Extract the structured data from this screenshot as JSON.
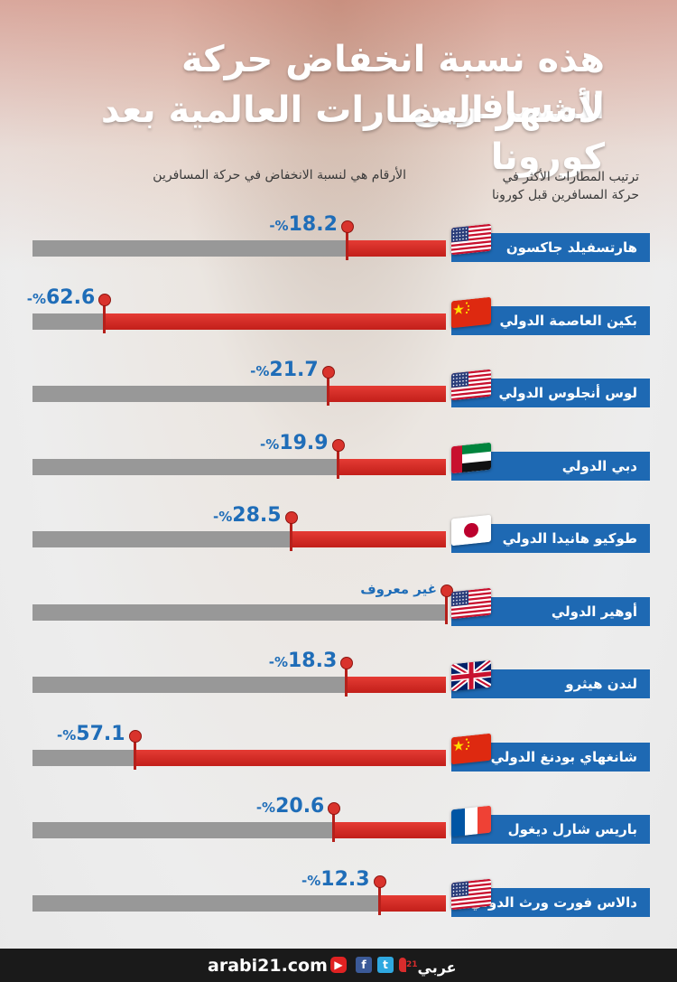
{
  "header": {
    "title_line1": "هذه نسبة انخفاض حركة المسافرين",
    "title_line2": "لأشهر المطارات العالمية بعد كورونا",
    "col_rank_line1": "ترتيب المطارات الأكثر في",
    "col_rank_line2": "حركة المسافرين قبل كورونا",
    "col_note": "الأرقام هي لنسبة الانخفاض في حركة المسافرين"
  },
  "colors": {
    "bar_red": "#d12a24",
    "track_gray": "#989898",
    "label_blue": "#1e69b3",
    "value_blue": "#1f6db8"
  },
  "chart_data": {
    "type": "bar",
    "orientation": "horizontal",
    "title": "هذه نسبة انخفاض حركة المسافرين لأشهر المطارات العالمية بعد كورونا",
    "value_unit": "%",
    "value_prefix": "-",
    "xlim": [
      0,
      100
    ],
    "categories": [
      "هارتسفيلد جاكسون",
      "بكين العاصمة الدولي",
      "لوس أنجلوس الدولي",
      "دبي الدولي",
      "طوكيو هانيدا الدولي",
      "أوهير الدولي",
      "لندن هيثرو",
      "شانغهاي بودنغ الدولي",
      "باريس شارل ديغول",
      "دالاس فورت ورث الدولي"
    ],
    "flags": [
      "usa-flag-icon",
      "china-flag-icon",
      "usa-flag-icon",
      "uae-flag-icon",
      "japan-flag-icon",
      "usa-flag-icon",
      "uk-flag-icon",
      "china-flag-icon",
      "france-flag-icon",
      "usa-flag-icon"
    ],
    "values": [
      18.2,
      62.6,
      21.7,
      19.9,
      28.5,
      null,
      18.3,
      57.1,
      20.6,
      12.3
    ],
    "value_labels": [
      "18.2",
      "62.6",
      "21.7",
      "19.9",
      "28.5",
      "غير معروف",
      "18.3",
      "57.1",
      "20.6",
      "12.3"
    ]
  },
  "footer": {
    "site": "arabi21.com",
    "logo_text": "عربي",
    "logo_num": "21"
  }
}
